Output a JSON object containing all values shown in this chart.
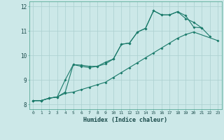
{
  "xlabel": "Humidex (Indice chaleur)",
  "bg_color": "#cce8e8",
  "grid_color": "#aacfcf",
  "line_color": "#1a7a6a",
  "xlim": [
    -0.5,
    23.5
  ],
  "ylim": [
    7.8,
    12.2
  ],
  "yticks": [
    8,
    9,
    10,
    11,
    12
  ],
  "series1_x": [
    0,
    1,
    2,
    3,
    4,
    5,
    6,
    7,
    8,
    9,
    10,
    11,
    12,
    13,
    14,
    15,
    16,
    17,
    18,
    19,
    20,
    21
  ],
  "series1_y": [
    8.15,
    8.15,
    8.25,
    8.3,
    8.5,
    9.62,
    9.6,
    9.55,
    9.55,
    9.72,
    9.85,
    10.45,
    10.5,
    10.95,
    11.1,
    11.82,
    11.65,
    11.65,
    11.78,
    11.62,
    11.15,
    11.12
  ],
  "series2_x": [
    0,
    1,
    2,
    3,
    4,
    5,
    6,
    7,
    8,
    9,
    10,
    11,
    12,
    13,
    14,
    15,
    16,
    17,
    18,
    19,
    20,
    21,
    22
  ],
  "series2_y": [
    8.15,
    8.15,
    8.25,
    8.3,
    9.0,
    9.62,
    9.55,
    9.5,
    9.55,
    9.65,
    9.85,
    10.45,
    10.5,
    10.95,
    11.1,
    11.82,
    11.65,
    11.65,
    11.78,
    11.5,
    11.35,
    11.12,
    10.78
  ],
  "series3_x": [
    0,
    1,
    2,
    3,
    4,
    5,
    6,
    7,
    8,
    9,
    10,
    11,
    12,
    13,
    14,
    15,
    16,
    17,
    18,
    19,
    20,
    23
  ],
  "series3_y": [
    8.15,
    8.15,
    8.25,
    8.3,
    8.45,
    8.5,
    8.6,
    8.7,
    8.8,
    8.9,
    9.1,
    9.3,
    9.5,
    9.7,
    9.9,
    10.1,
    10.3,
    10.5,
    10.7,
    10.85,
    10.95,
    10.6
  ]
}
